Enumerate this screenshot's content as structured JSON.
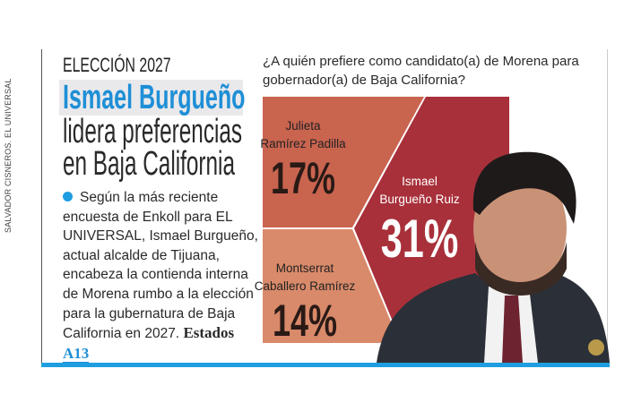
{
  "credit": "SALVADOR CISNEROS. EL UNIVERSAL",
  "article": {
    "kicker": "ELECCIÓN 2027",
    "headline_highlight": "Ismael Burgueño",
    "headline_line2": "lidera preferencias",
    "headline_line3": "en Baja California",
    "body": "Según la más reciente encuesta de Enkoll para EL UNIVERSAL, Ismael Burgueño, actual alcalde de Tijuana, encabeza la contienda interna de Morena rumbo a la elección para la gubernatura de Baja California en 2027.",
    "section": "Estados",
    "page_ref": "A13"
  },
  "chart_data": {
    "type": "pie",
    "title": "¿A quién prefiere como candidato(a) de Morena para gobernador(a) de Baja California?",
    "slices": [
      {
        "name_line1": "Julieta",
        "name_line2": "Ramírez Padilla",
        "value": 17,
        "label": "17%",
        "color": "#c9644f"
      },
      {
        "name_line1": "Ismael",
        "name_line2": "Burgueño Ruiz",
        "value": 31,
        "label": "31%",
        "color": "#a8303a"
      },
      {
        "name_line1": "Montserrat",
        "name_line2": "Caballero Ramírez",
        "value": 14,
        "label": "14%",
        "color": "#d98a6a"
      }
    ]
  },
  "colors": {
    "accent": "#1e9ee0",
    "headline_blue": "#1e8fd6"
  }
}
